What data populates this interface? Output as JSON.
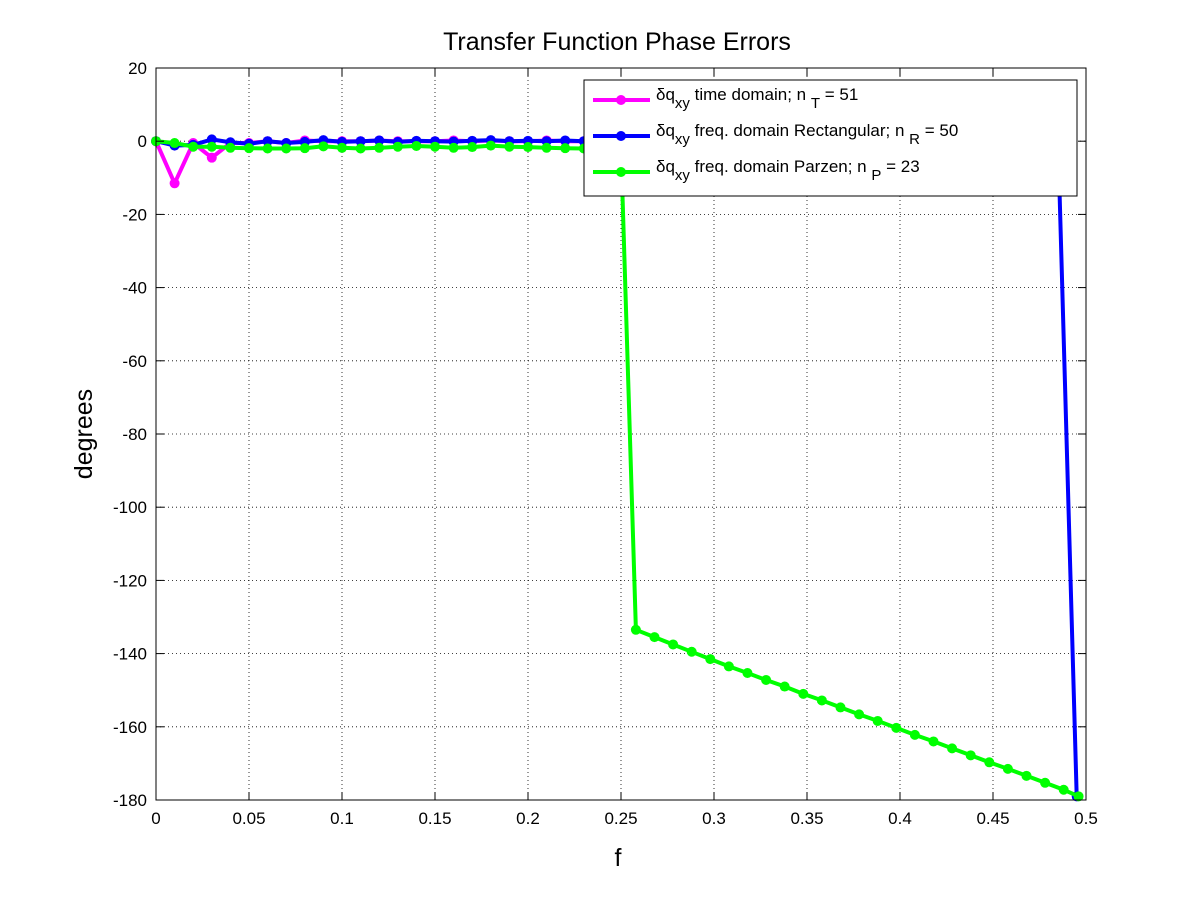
{
  "chart_data": {
    "type": "line",
    "title": "Transfer Function Phase Errors",
    "xlabel": "f",
    "ylabel": "degrees",
    "xlim": [
      0,
      0.5
    ],
    "ylim": [
      -180,
      20
    ],
    "grid": true,
    "legend_position": "top-right",
    "x_ticks": [
      "0",
      "0.05",
      "0.1",
      "0.15",
      "0.2",
      "0.25",
      "0.3",
      "0.35",
      "0.4",
      "0.45",
      "0.5"
    ],
    "y_ticks": [
      "20",
      "0",
      "-20",
      "-40",
      "-60",
      "-80",
      "-100",
      "-120",
      "-140",
      "-160",
      "-180"
    ],
    "series": [
      {
        "legend": {
          "prefix": "δq",
          "sub": "xy",
          "text": " time domain; n ",
          "nsub": "T",
          "suffix": " = 51"
        },
        "color": "#ff00ff",
        "x": [
          0,
          0.01,
          0.02,
          0.03,
          0.04,
          0.05,
          0.06,
          0.07,
          0.08,
          0.09,
          0.1,
          0.11,
          0.12,
          0.13,
          0.14,
          0.15,
          0.16,
          0.17,
          0.18,
          0.19,
          0.2,
          0.21,
          0.22,
          0.23,
          0.24,
          0.25,
          0.26,
          0.27,
          0.28,
          0.29,
          0.3,
          0.31,
          0.32,
          0.33,
          0.34,
          0.35,
          0.36,
          0.37,
          0.38,
          0.39,
          0.4,
          0.41,
          0.42,
          0.43,
          0.44,
          0.45,
          0.46,
          0.47,
          0.48,
          0.49
        ],
        "y": [
          0,
          -11.5,
          -0.5,
          -4.5,
          -0.5,
          -0.5,
          0,
          -0.5,
          0.2,
          0,
          0,
          0,
          0.2,
          0,
          0,
          0,
          0.2,
          0,
          0.2,
          0,
          0,
          0.2,
          0,
          0,
          0.2,
          0.3,
          0,
          0.2,
          0,
          0.2,
          0,
          0.2,
          0,
          0,
          0.2,
          0,
          0.2,
          0,
          0,
          0.2,
          0,
          0,
          0.2,
          0,
          0,
          0,
          0,
          0,
          -0.3,
          0
        ]
      },
      {
        "legend": {
          "prefix": "δq",
          "sub": "xy",
          "text": " freq. domain Rectangular; n ",
          "nsub": "R",
          "suffix": " = 50"
        },
        "color": "#0000ff",
        "x": [
          0,
          0.01,
          0.02,
          0.03,
          0.04,
          0.05,
          0.06,
          0.07,
          0.08,
          0.09,
          0.1,
          0.11,
          0.12,
          0.13,
          0.14,
          0.15,
          0.16,
          0.17,
          0.18,
          0.19,
          0.2,
          0.21,
          0.22,
          0.23,
          0.24,
          0.25,
          0.26,
          0.27,
          0.28,
          0.29,
          0.3,
          0.31,
          0.32,
          0.33,
          0.34,
          0.35,
          0.36,
          0.37,
          0.38,
          0.39,
          0.4,
          0.41,
          0.42,
          0.43,
          0.44,
          0.45,
          0.46,
          0.47,
          0.48,
          0.485,
          0.495
        ],
        "y": [
          0,
          -1.2,
          -1,
          0.5,
          -0.3,
          -0.7,
          0,
          -0.5,
          -0.2,
          0.3,
          -0.2,
          0,
          0.2,
          -0.2,
          0.1,
          0,
          -0.1,
          0.1,
          0.3,
          0,
          0.1,
          0,
          0.2,
          0,
          0.1,
          0.8,
          0.3,
          0.1,
          0,
          0.2,
          0,
          0.1,
          0,
          0.1,
          0.2,
          0,
          0.1,
          0,
          0.2,
          0.1,
          0,
          0.1,
          0.2,
          0.1,
          0,
          0.2,
          0.1,
          0,
          0.2,
          0,
          -179
        ]
      },
      {
        "legend": {
          "prefix": "δq",
          "sub": "xy",
          "text": " freq. domain Parzen; n ",
          "nsub": "P",
          "suffix": " = 23"
        },
        "color": "#00ff00",
        "x": [
          0,
          0.01,
          0.02,
          0.03,
          0.04,
          0.05,
          0.06,
          0.07,
          0.08,
          0.09,
          0.1,
          0.11,
          0.12,
          0.13,
          0.14,
          0.15,
          0.16,
          0.17,
          0.18,
          0.19,
          0.2,
          0.21,
          0.22,
          0.23,
          0.24,
          0.25,
          0.258,
          0.268,
          0.278,
          0.288,
          0.298,
          0.308,
          0.318,
          0.328,
          0.338,
          0.348,
          0.358,
          0.368,
          0.378,
          0.388,
          0.398,
          0.408,
          0.418,
          0.428,
          0.438,
          0.448,
          0.458,
          0.468,
          0.478,
          0.488,
          0.496
        ],
        "y": [
          0,
          -0.5,
          -1.5,
          -1.5,
          -1.8,
          -1.9,
          -2,
          -2,
          -1.9,
          -1.4,
          -1.8,
          -2,
          -1.8,
          -1.5,
          -1.3,
          -1.5,
          -1.8,
          -1.6,
          -1.2,
          -1.5,
          -1.6,
          -1.8,
          -1.9,
          -2,
          -1.8,
          -1.6,
          -133.5,
          -135.5,
          -137.5,
          -139.5,
          -141.5,
          -143.5,
          -145.3,
          -147.2,
          -149,
          -151,
          -152.8,
          -154.7,
          -156.6,
          -158.4,
          -160.3,
          -162.2,
          -164,
          -165.9,
          -167.8,
          -169.7,
          -171.5,
          -173.4,
          -175.3,
          -177.2,
          -179
        ]
      }
    ]
  }
}
